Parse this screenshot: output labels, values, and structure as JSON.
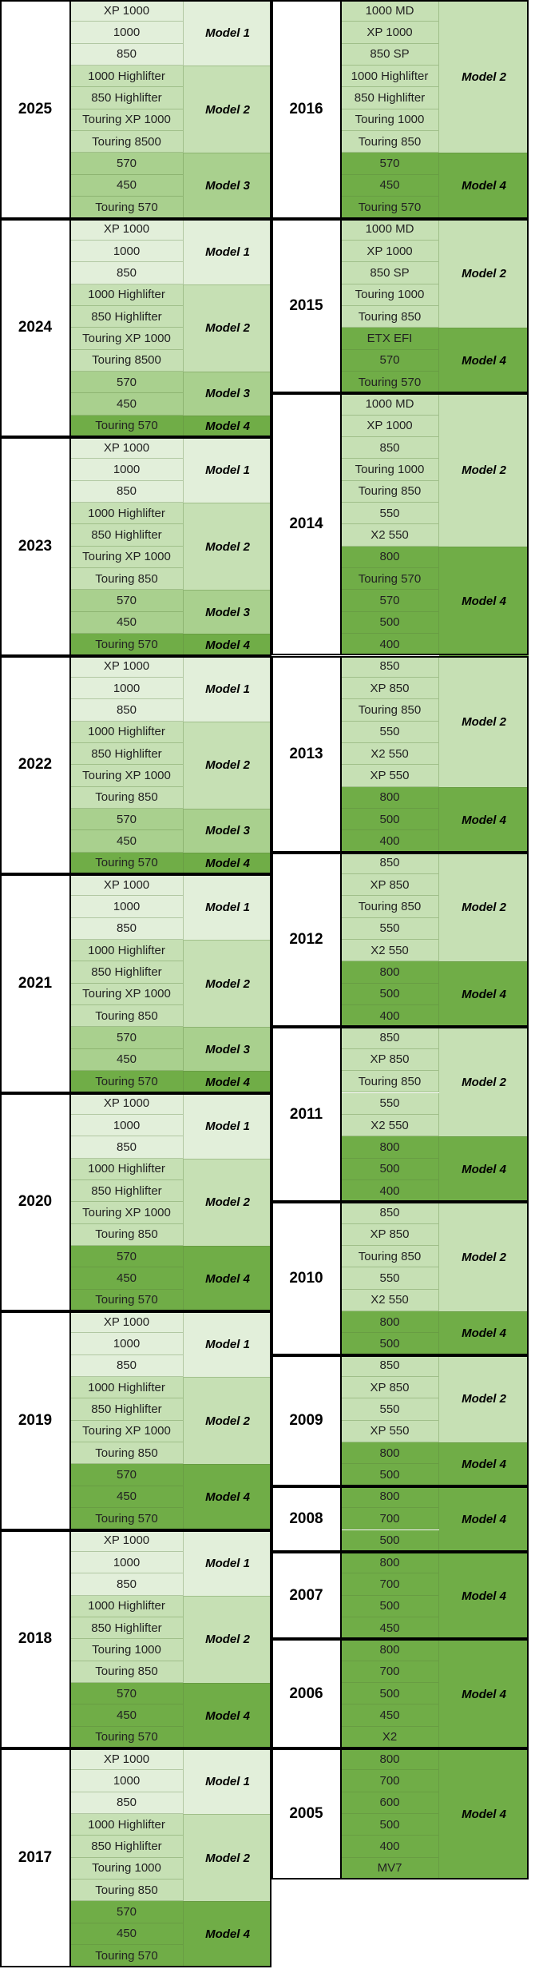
{
  "columns": [
    {
      "blocks": [
        {
          "year": "2025",
          "groups": [
            {
              "label": "Model 1",
              "color": "#e2efda",
              "models": [
                "XP 1000",
                "1000",
                "850"
              ]
            },
            {
              "label": "Model 2",
              "color": "#c6e0b4",
              "models": [
                "1000 Highlifter",
                "850 Highlifter",
                "Touring XP 1000",
                "Touring 8500"
              ]
            },
            {
              "label": "Model 3",
              "color": "#a9d08e",
              "models": [
                "570",
                "450",
                "Touring 570"
              ]
            }
          ]
        },
        {
          "year": "2024",
          "groups": [
            {
              "label": "Model 1",
              "color": "#e2efda",
              "models": [
                "XP 1000",
                "1000",
                "850"
              ]
            },
            {
              "label": "Model 2",
              "color": "#c6e0b4",
              "models": [
                "1000 Highlifter",
                "850 Highlifter",
                "Touring XP 1000",
                "Touring 8500"
              ]
            },
            {
              "label": "Model 3",
              "color": "#a9d08e",
              "models": [
                "570",
                "450"
              ]
            },
            {
              "label": "Model 4",
              "color": "#70ad47",
              "models": [
                "Touring 570"
              ]
            }
          ]
        },
        {
          "year": "2023",
          "groups": [
            {
              "label": "Model 1",
              "color": "#e2efda",
              "models": [
                "XP 1000",
                "1000",
                "850"
              ]
            },
            {
              "label": "Model 2",
              "color": "#c6e0b4",
              "models": [
                "1000 Highlifter",
                "850 Highlifter",
                "Touring XP 1000",
                "Touring 850"
              ]
            },
            {
              "label": "Model 3",
              "color": "#a9d08e",
              "models": [
                "570",
                "450"
              ]
            },
            {
              "label": "Model 4",
              "color": "#70ad47",
              "models": [
                "Touring 570"
              ]
            }
          ]
        },
        {
          "year": "2022",
          "groups": [
            {
              "label": "Model 1",
              "color": "#e2efda",
              "models": [
                "XP 1000",
                "1000",
                "850"
              ]
            },
            {
              "label": "Model 2",
              "color": "#c6e0b4",
              "models": [
                "1000 Highlifter",
                "850 Highlifter",
                "Touring XP 1000",
                "Touring 850"
              ]
            },
            {
              "label": "Model 3",
              "color": "#a9d08e",
              "models": [
                "570",
                "450"
              ]
            },
            {
              "label": "Model 4",
              "color": "#70ad47",
              "models": [
                "Touring 570"
              ]
            }
          ]
        },
        {
          "year": "2021",
          "groups": [
            {
              "label": "Model 1",
              "color": "#e2efda",
              "models": [
                "XP 1000",
                "1000",
                "850"
              ]
            },
            {
              "label": "Model 2",
              "color": "#c6e0b4",
              "models": [
                "1000 Highlifter",
                "850 Highlifter",
                "Touring XP 1000",
                "Touring 850"
              ]
            },
            {
              "label": "Model 3",
              "color": "#a9d08e",
              "models": [
                "570",
                "450"
              ]
            },
            {
              "label": "Model 4",
              "color": "#70ad47",
              "models": [
                "Touring 570"
              ]
            }
          ]
        },
        {
          "year": "2020",
          "groups": [
            {
              "label": "Model 1",
              "color": "#e2efda",
              "models": [
                "XP 1000",
                "1000",
                "850"
              ]
            },
            {
              "label": "Model 2",
              "color": "#c6e0b4",
              "models": [
                "1000 Highlifter",
                "850 Highlifter",
                "Touring XP 1000",
                "Touring 850"
              ]
            },
            {
              "label": "Model 4",
              "color": "#70ad47",
              "models": [
                "570",
                "450",
                "Touring 570"
              ]
            }
          ]
        },
        {
          "year": "2019",
          "groups": [
            {
              "label": "Model 1",
              "color": "#e2efda",
              "models": [
                "XP 1000",
                "1000",
                "850"
              ]
            },
            {
              "label": "Model 2",
              "color": "#c6e0b4",
              "models": [
                "1000 Highlifter",
                "850 Highlifter",
                "Touring XP 1000",
                "Touring 850"
              ]
            },
            {
              "label": "Model 4",
              "color": "#70ad47",
              "models": [
                "570",
                "450",
                "Touring 570"
              ]
            }
          ]
        },
        {
          "year": "2018",
          "groups": [
            {
              "label": "Model 1",
              "color": "#e2efda",
              "models": [
                "XP 1000",
                "1000",
                "850"
              ]
            },
            {
              "label": "Model 2",
              "color": "#c6e0b4",
              "models": [
                "1000 Highlifter",
                "850 Highlifter",
                "Touring 1000",
                "Touring 850"
              ]
            },
            {
              "label": "Model 4",
              "color": "#70ad47",
              "models": [
                "570",
                "450",
                "Touring 570"
              ]
            }
          ]
        },
        {
          "year": "2017",
          "groups": [
            {
              "label": "Model 1",
              "color": "#e2efda",
              "models": [
                "XP 1000",
                "1000",
                "850"
              ]
            },
            {
              "label": "Model 2",
              "color": "#c6e0b4",
              "models": [
                "1000 Highlifter",
                "850 Highlifter",
                "Touring 1000",
                "Touring 850"
              ]
            },
            {
              "label": "Model 4",
              "color": "#70ad47",
              "models": [
                "570",
                "450",
                "Touring 570"
              ]
            }
          ]
        }
      ]
    },
    {
      "blocks": [
        {
          "year": "2016",
          "groups": [
            {
              "label": "Model 2",
              "color": "#c6e0b4",
              "models": [
                "1000 MD",
                "XP 1000",
                "850 SP",
                "1000 Highlifter",
                "850 Highlifter",
                "Touring 1000",
                "Touring 850"
              ]
            },
            {
              "label": "Model 4",
              "color": "#70ad47",
              "models": [
                "570",
                "450",
                "Touring 570"
              ]
            }
          ]
        },
        {
          "year": "2015",
          "groups": [
            {
              "label": "Model 2",
              "color": "#c6e0b4",
              "models": [
                "1000 MD",
                "XP 1000",
                "850 SP",
                "Touring 1000",
                "Touring 850"
              ]
            },
            {
              "label": "Model 4",
              "color": "#70ad47",
              "models": [
                "ETX EFI",
                "570",
                "Touring 570"
              ]
            }
          ]
        },
        {
          "year": "2014",
          "groups": [
            {
              "label": "Model 2",
              "color": "#c6e0b4",
              "models": [
                "1000 MD",
                "XP 1000",
                "850",
                "Touring 1000",
                "Touring 850",
                "550",
                "X2 550"
              ]
            },
            {
              "label": "Model 4",
              "color": "#70ad47",
              "models": [
                "800",
                "Touring 570",
                "570",
                "500",
                "400"
              ]
            }
          ]
        },
        {
          "year": "2013",
          "groups": [
            {
              "label": "Model 2",
              "color": "#c6e0b4",
              "models": [
                "850",
                "XP 850",
                "Touring 850",
                "550",
                "X2 550",
                "XP 550"
              ]
            },
            {
              "label": "Model 4",
              "color": "#70ad47",
              "models": [
                "800",
                "500",
                "400"
              ]
            }
          ]
        },
        {
          "year": "2012",
          "groups": [
            {
              "label": "Model 2",
              "color": "#c6e0b4",
              "models": [
                "850",
                "XP 850",
                "Touring 850",
                "550",
                "X2 550"
              ]
            },
            {
              "label": "Model 4",
              "color": "#70ad47",
              "models": [
                "800",
                "500",
                "400"
              ]
            }
          ]
        },
        {
          "year": "2011",
          "groups": [
            {
              "label": "Model 2",
              "color": "#c6e0b4",
              "models": [
                "850",
                "XP 850",
                "Touring 850",
                "550",
                "X2 550"
              ]
            },
            {
              "label": "Model 4",
              "color": "#70ad47",
              "models": [
                "800",
                "500",
                "400"
              ]
            }
          ]
        },
        {
          "year": "2010",
          "groups": [
            {
              "label": "Model 2",
              "color": "#c6e0b4",
              "models": [
                "850",
                "XP 850",
                "Touring 850",
                "550",
                "X2 550"
              ]
            },
            {
              "label": "Model 4",
              "color": "#70ad47",
              "models": [
                "800",
                "500"
              ]
            }
          ]
        },
        {
          "year": "2009",
          "groups": [
            {
              "label": "Model 2",
              "color": "#c6e0b4",
              "models": [
                "850",
                "XP 850",
                "550",
                "XP 550"
              ]
            },
            {
              "label": "Model 4",
              "color": "#70ad47",
              "models": [
                "800",
                "500"
              ]
            }
          ]
        },
        {
          "year": "2008",
          "groups": [
            {
              "label": "Model 4",
              "color": "#70ad47",
              "models": [
                "800",
                "700",
                "500"
              ]
            }
          ]
        },
        {
          "year": "2007",
          "groups": [
            {
              "label": "Model 4",
              "color": "#70ad47",
              "models": [
                "800",
                "700",
                "500",
                "450"
              ]
            }
          ]
        },
        {
          "year": "2006",
          "groups": [
            {
              "label": "Model 4",
              "color": "#70ad47",
              "models": [
                "800",
                "700",
                "500",
                "450",
                "X2"
              ]
            }
          ]
        },
        {
          "year": "2005",
          "groups": [
            {
              "label": "Model 4",
              "color": "#70ad47",
              "models": [
                "800",
                "700",
                "600",
                "500",
                "400",
                "MV7"
              ]
            }
          ]
        }
      ]
    }
  ]
}
